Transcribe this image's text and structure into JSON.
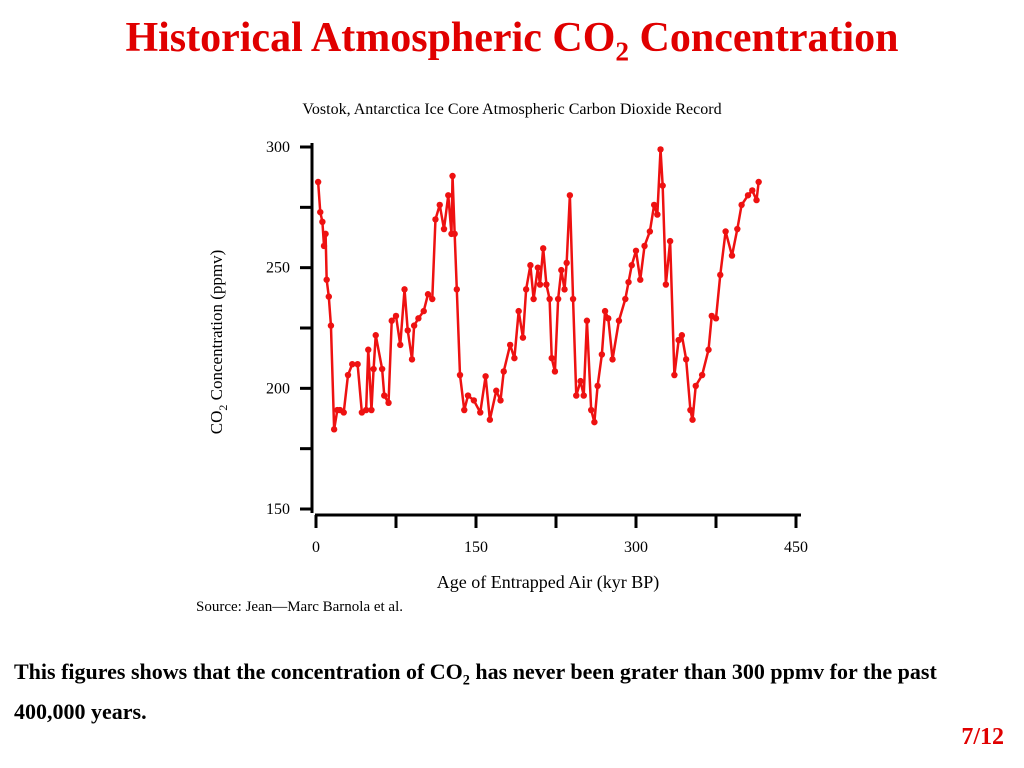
{
  "header": {
    "title": {
      "before": "Historical Atmospheric CO",
      "sub": "2",
      "after": " Concentration"
    }
  },
  "chart_data": {
    "type": "line",
    "title": "Vostok, Antarctica Ice Core Atmospheric Carbon Dioxide Record",
    "y_label": {
      "before": "CO",
      "sub": "2",
      "after": " Concentration (ppmv)"
    },
    "x_label": "Age of Entrapped Air (kyr BP)",
    "source": "Source: Jean—Marc Barnola et al.",
    "color": "#ee1111",
    "xlim": [
      0,
      450
    ],
    "xticks": [
      0,
      150,
      300,
      450
    ],
    "xticks_minor": [
      75,
      225,
      375
    ],
    "ylim": [
      150,
      300
    ],
    "yticks": [
      150,
      200,
      250,
      300
    ],
    "yticks_minor": [
      175,
      225,
      275
    ],
    "x": [
      2,
      4,
      6,
      7.5,
      9,
      10,
      12,
      14,
      17,
      20,
      22.5,
      26,
      30,
      34,
      39,
      43,
      47,
      49,
      52,
      54,
      56,
      62,
      64,
      68,
      71,
      75,
      79,
      83,
      86,
      90,
      92,
      96,
      101,
      105,
      109,
      112,
      116,
      120,
      124,
      127,
      128,
      130,
      132,
      135,
      139,
      142.5,
      148,
      154,
      159,
      163,
      169,
      173,
      176,
      182,
      186,
      190,
      194,
      197,
      201,
      204,
      208,
      210,
      213,
      216,
      219,
      221,
      224,
      227,
      230,
      233,
      235,
      238,
      241,
      244,
      248,
      251,
      254,
      258,
      261,
      264,
      268,
      271,
      274,
      278,
      284,
      290,
      293,
      296,
      300,
      304,
      308,
      313,
      317,
      320,
      323,
      325,
      328,
      332,
      336,
      340,
      343,
      347,
      351,
      353,
      356,
      362,
      368,
      371,
      375,
      379,
      384,
      390,
      395,
      399,
      405,
      409,
      413,
      415
    ],
    "values": [
      285.5,
      273,
      269,
      259,
      264,
      245,
      238,
      226,
      183,
      191,
      191,
      190,
      205.5,
      210,
      210,
      190,
      191,
      216,
      191,
      208,
      222,
      208,
      197,
      194,
      228,
      230,
      218,
      241,
      224,
      212,
      226,
      229,
      232,
      239,
      237,
      270,
      276,
      266,
      280,
      264,
      288,
      264,
      241,
      205.5,
      191,
      197,
      195,
      190,
      205,
      187,
      199,
      195,
      207,
      218,
      212.5,
      232,
      221,
      241,
      251,
      237,
      250,
      243,
      258,
      243,
      237,
      212.5,
      207,
      237,
      249,
      241,
      252,
      280,
      237,
      197,
      203,
      197,
      228,
      191,
      186,
      201,
      214,
      232,
      229,
      212,
      228,
      237,
      244,
      251,
      257,
      245,
      259,
      265,
      276,
      272,
      299,
      284,
      243,
      261,
      205.5,
      220,
      222,
      212,
      191,
      187,
      201,
      205.5,
      216,
      230,
      229,
      247,
      265,
      255,
      266,
      276,
      280,
      282,
      278,
      285.5
    ]
  },
  "caption": {
    "before": "This figures shows that the concentration of CO",
    "sub": "2",
    "after": " has never been grater than 300 ppmv for the past 400,000 years."
  },
  "page_number": "7/12"
}
